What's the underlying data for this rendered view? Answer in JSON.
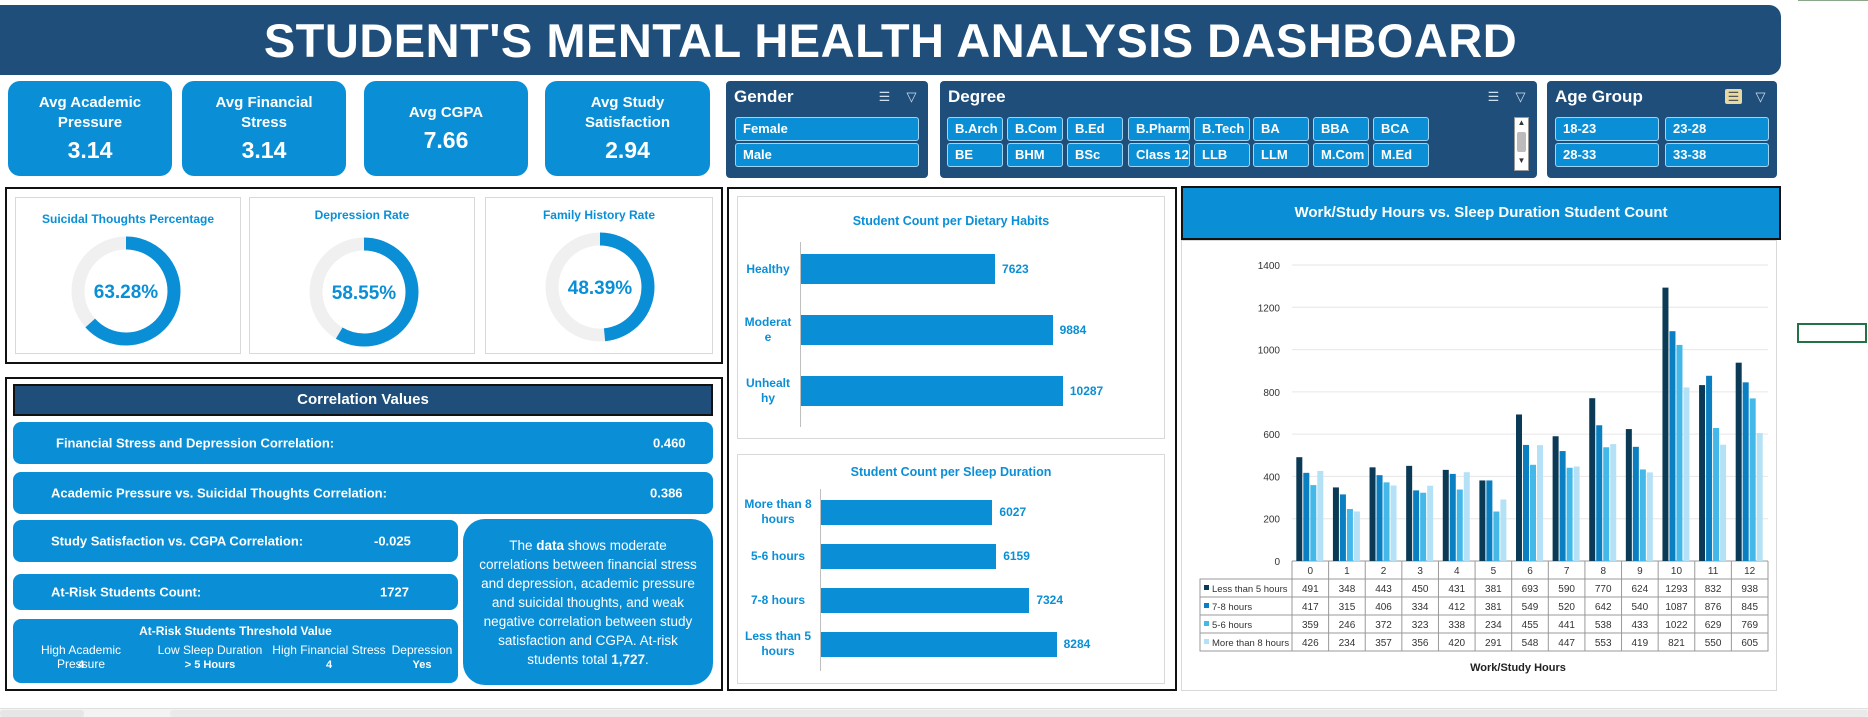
{
  "title": "STUDENT'S MENTAL HEALTH ANALYSIS DASHBOARD",
  "colors": {
    "title_bg": "#1e4e79",
    "accent": "#0a8fd6",
    "donut_track": "#f0f0f0",
    "series": [
      "#0b3a56",
      "#0a7fc2",
      "#45b8ea",
      "#b4e1f6"
    ]
  },
  "kpis": [
    {
      "label": "Avg Academic Pressure",
      "value": "3.14"
    },
    {
      "label": "Avg Financial Stress",
      "value": "3.14"
    },
    {
      "label": "Avg CGPA",
      "value": "7.66"
    },
    {
      "label": "Avg Study Satisfaction",
      "value": "2.94"
    }
  ],
  "slicers": {
    "gender": {
      "title": "Gender",
      "items": [
        "Female",
        "Male"
      ]
    },
    "degree": {
      "title": "Degree",
      "items": [
        "B.Arch",
        "B.Com",
        "B.Ed",
        "B.Pharm",
        "B.Tech",
        "BA",
        "BBA",
        "BCA",
        "BE",
        "BHM",
        "BSc",
        "Class 12",
        "LLB",
        "LLM",
        "M.Com",
        "M.Ed"
      ]
    },
    "age_group": {
      "title": "Age Group",
      "items": [
        "18-23",
        "23-28",
        "28-33",
        "33-38"
      ]
    }
  },
  "donuts": [
    {
      "title": "Suicidal Thoughts Percentage",
      "value_text": "63.28%",
      "fraction": 0.6328
    },
    {
      "title": "Depression Rate",
      "value_text": "58.55%",
      "fraction": 0.5855
    },
    {
      "title": "Family History Rate",
      "value_text": "48.39%",
      "fraction": 0.4839
    }
  ],
  "correlation": {
    "header": "Correlation Values",
    "rows": [
      {
        "label": "Financial Stress and Depression Correlation:",
        "value": "0.460"
      },
      {
        "label": "Academic Pressure vs. Suicidal Thoughts Correlation:",
        "value": "0.386"
      },
      {
        "label": "Study Satisfaction vs. CGPA Correlation:",
        "value": "-0.025"
      },
      {
        "label": "At-Risk Students Count:",
        "value": "1727"
      }
    ],
    "threshold": {
      "title": "At-Risk Students Threshold Value",
      "items": [
        {
          "label": "High Academic Pressure",
          "value": "4"
        },
        {
          "label": "Low Sleep Duration",
          "value": "> 5 Hours"
        },
        {
          "label": "High Financial Stress",
          "value": "4"
        },
        {
          "label": "Depression",
          "value": "Yes"
        }
      ]
    },
    "summary": {
      "p1": "The ",
      "b1": "data",
      "p2": " shows moderate correlations between financial stress and depression, academic pressure and suicidal thoughts, and weak negative correlation between study satisfaction and CGPA. At-risk students total ",
      "b2": "1,727",
      "p3": "."
    }
  },
  "chart_data": [
    {
      "type": "bar",
      "orientation": "horizontal",
      "title": "Student Count per Dietary Habits",
      "categories": [
        "Healthy",
        "Moderat\ne",
        "Unhealt\nhy"
      ],
      "values": [
        7623,
        9884,
        10287
      ],
      "value_labels": [
        "7623",
        "9884",
        "10287"
      ],
      "xlim": [
        0,
        11000
      ]
    },
    {
      "type": "bar",
      "orientation": "horizontal",
      "title": "Student Count per Sleep Duration",
      "categories": [
        "More than 8\nhours",
        "5-6 hours",
        "7-8 hours",
        "Less than 5\nhours"
      ],
      "values": [
        6027,
        6159,
        7324,
        8284
      ],
      "value_labels": [
        "6027",
        "6159",
        "7324",
        "8284"
      ],
      "xlim": [
        0,
        9000
      ]
    },
    {
      "type": "bar",
      "title": "Work/Study Hours vs. Sleep Duration Student Count",
      "xlabel": "Work/Study Hours",
      "ylabel": "",
      "ylim": [
        0,
        1400
      ],
      "yticks": [
        0,
        200,
        400,
        600,
        800,
        1000,
        1200,
        1400
      ],
      "categories": [
        "0",
        "1",
        "2",
        "3",
        "4",
        "5",
        "6",
        "7",
        "8",
        "9",
        "10",
        "11",
        "12"
      ],
      "legend": "bottom-table",
      "series": [
        {
          "name": "Less than 5 hours",
          "values": [
            491,
            348,
            443,
            450,
            431,
            381,
            693,
            590,
            770,
            624,
            1293,
            832,
            938
          ]
        },
        {
          "name": "7-8 hours",
          "values": [
            417,
            315,
            406,
            334,
            412,
            381,
            549,
            520,
            642,
            540,
            1087,
            876,
            845
          ]
        },
        {
          "name": "5-6 hours",
          "values": [
            359,
            246,
            372,
            323,
            338,
            234,
            455,
            441,
            538,
            433,
            1022,
            629,
            769
          ]
        },
        {
          "name": "More than 8 hours",
          "values": [
            426,
            234,
            357,
            356,
            420,
            291,
            548,
            447,
            553,
            419,
            821,
            550,
            605
          ]
        }
      ]
    }
  ]
}
